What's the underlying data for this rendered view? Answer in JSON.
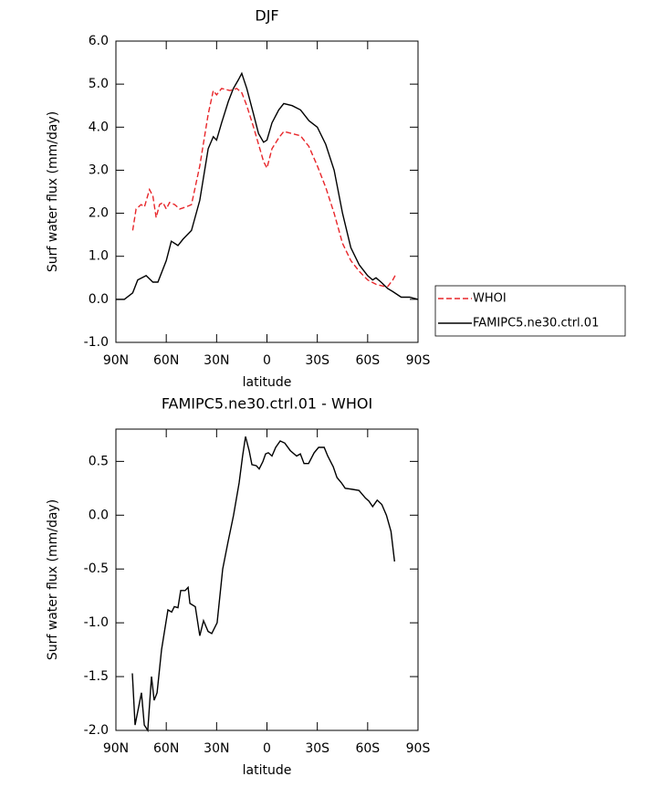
{
  "chart_data": [
    {
      "type": "line",
      "title": "DJF",
      "ylabel": "Surf water flux (mm/day)",
      "xlabel": "latitude",
      "xlim": [
        90,
        -90
      ],
      "xticks": [
        {
          "value": 90,
          "label": "90N"
        },
        {
          "value": 60,
          "label": "60N"
        },
        {
          "value": 30,
          "label": "30N"
        },
        0,
        {
          "value": -30,
          "label": "30S"
        },
        {
          "value": -60,
          "label": "60S"
        },
        {
          "value": -90,
          "label": "90S"
        }
      ],
      "ylim": [
        -1,
        6
      ],
      "yticks": [
        {
          "value": -1,
          "label": "-1.0"
        },
        {
          "value": 0,
          "label": "0.0"
        },
        {
          "value": 1,
          "label": "1.0"
        },
        {
          "value": 2,
          "label": "2.0"
        },
        {
          "value": 3,
          "label": "3.0"
        },
        {
          "value": 4,
          "label": "4.0"
        },
        {
          "value": 5,
          "label": "5.0"
        },
        {
          "value": 6,
          "label": "6.0"
        }
      ],
      "legend": "outside right",
      "series": [
        {
          "name": "WHOI",
          "color": "#e8262a",
          "dash": true,
          "x": [
            80,
            78,
            75,
            73,
            70,
            68,
            66,
            64,
            62,
            60,
            58,
            55,
            52,
            48,
            45,
            40,
            35,
            32,
            30,
            27,
            22,
            18,
            15,
            12,
            8,
            5,
            2,
            0,
            -3,
            -7,
            -10,
            -15,
            -20,
            -25,
            -30,
            -35,
            -40,
            -45,
            -50,
            -55,
            -60,
            -65,
            -70,
            -72,
            -75,
            -77
          ],
          "values": [
            1.6,
            2.1,
            2.2,
            2.15,
            2.55,
            2.4,
            1.9,
            2.2,
            2.25,
            2.1,
            2.25,
            2.2,
            2.1,
            2.15,
            2.2,
            3.1,
            4.3,
            4.85,
            4.75,
            4.9,
            4.85,
            4.9,
            4.8,
            4.5,
            4.0,
            3.6,
            3.2,
            3.05,
            3.5,
            3.75,
            3.9,
            3.85,
            3.8,
            3.55,
            3.1,
            2.6,
            2.0,
            1.3,
            0.9,
            0.65,
            0.45,
            0.35,
            0.3,
            0.3,
            0.45,
            0.6
          ]
        },
        {
          "name": "FAMIPC5.ne30.ctrl.01",
          "color": "#000000",
          "dash": false,
          "x": [
            90,
            85,
            80,
            77,
            72,
            68,
            65,
            60,
            57,
            53,
            50,
            45,
            40,
            35,
            32,
            30,
            27,
            23,
            20,
            17,
            15,
            12,
            8,
            5,
            2,
            0,
            -3,
            -7,
            -10,
            -15,
            -20,
            -25,
            -30,
            -35,
            -40,
            -45,
            -50,
            -55,
            -60,
            -63,
            -65,
            -68,
            -72,
            -75,
            -80,
            -85,
            -90
          ],
          "values": [
            0.0,
            0.0,
            0.15,
            0.45,
            0.55,
            0.4,
            0.4,
            0.9,
            1.35,
            1.25,
            1.4,
            1.6,
            2.3,
            3.5,
            3.78,
            3.7,
            4.1,
            4.6,
            4.9,
            5.1,
            5.25,
            4.9,
            4.3,
            3.85,
            3.65,
            3.7,
            4.1,
            4.4,
            4.55,
            4.5,
            4.4,
            4.15,
            4.0,
            3.6,
            3.0,
            2.0,
            1.2,
            0.8,
            0.55,
            0.45,
            0.5,
            0.4,
            0.25,
            0.18,
            0.05,
            0.05,
            0.0
          ]
        }
      ]
    },
    {
      "type": "line",
      "title": "FAMIPC5.ne30.ctrl.01 - WHOI",
      "ylabel": "Surf water flux (mm/day)",
      "xlabel": "latitude",
      "xlim": [
        90,
        -90
      ],
      "xticks": [
        {
          "value": 90,
          "label": "90N"
        },
        {
          "value": 60,
          "label": "60N"
        },
        {
          "value": 30,
          "label": "30N"
        },
        0,
        {
          "value": -30,
          "label": "30S"
        },
        {
          "value": -60,
          "label": "60S"
        },
        {
          "value": -90,
          "label": "90S"
        }
      ],
      "ylim": [
        -2,
        0.8
      ],
      "yticks": [
        {
          "value": -2,
          "label": "-2.0"
        },
        -1.5,
        {
          "value": -1,
          "label": "-1.0"
        },
        -0.5,
        {
          "value": 0,
          "label": "0.0"
        },
        0.5
      ],
      "color": "#000000",
      "x": [
        80.2,
        78.6,
        74.8,
        73.1,
        71.0,
        68.8,
        67.2,
        65.5,
        62.8,
        59.0,
        56.8,
        55.2,
        53.0,
        51.4,
        48.7,
        47.0,
        45.9,
        42.7,
        40.0,
        37.8,
        35.1,
        32.9,
        29.7,
        26.4,
        23.2,
        19.9,
        16.6,
        14.5,
        12.8,
        10.6,
        9.0,
        6.3,
        4.6,
        2.4,
        0.8,
        -0.8,
        -3.0,
        -5.2,
        -7.9,
        -10.6,
        -13.9,
        -17.7,
        -19.9,
        -22.1,
        -24.8,
        -28.1,
        -30.8,
        -34.1,
        -36.2,
        -39.5,
        -41.7,
        -44.4,
        -46.6,
        -51.0,
        -54.8,
        -58.6,
        -60.8,
        -63.0,
        -65.7,
        -68.4,
        -71.2,
        -73.9,
        -76.0
      ],
      "values": [
        -1.47,
        -1.95,
        -1.65,
        -1.95,
        -2.0,
        -1.5,
        -1.72,
        -1.65,
        -1.25,
        -0.88,
        -0.9,
        -0.85,
        -0.86,
        -0.7,
        -0.7,
        -0.67,
        -0.82,
        -0.85,
        -1.12,
        -0.98,
        -1.08,
        -1.1,
        -1.0,
        -0.5,
        -0.25,
        0.0,
        0.3,
        0.55,
        0.73,
        0.6,
        0.47,
        0.46,
        0.43,
        0.5,
        0.57,
        0.58,
        0.55,
        0.63,
        0.69,
        0.67,
        0.6,
        0.55,
        0.57,
        0.48,
        0.48,
        0.58,
        0.63,
        0.63,
        0.55,
        0.45,
        0.35,
        0.3,
        0.25,
        0.24,
        0.23,
        0.16,
        0.13,
        0.08,
        0.14,
        0.1,
        0.0,
        -0.15,
        -0.43
      ]
    }
  ]
}
